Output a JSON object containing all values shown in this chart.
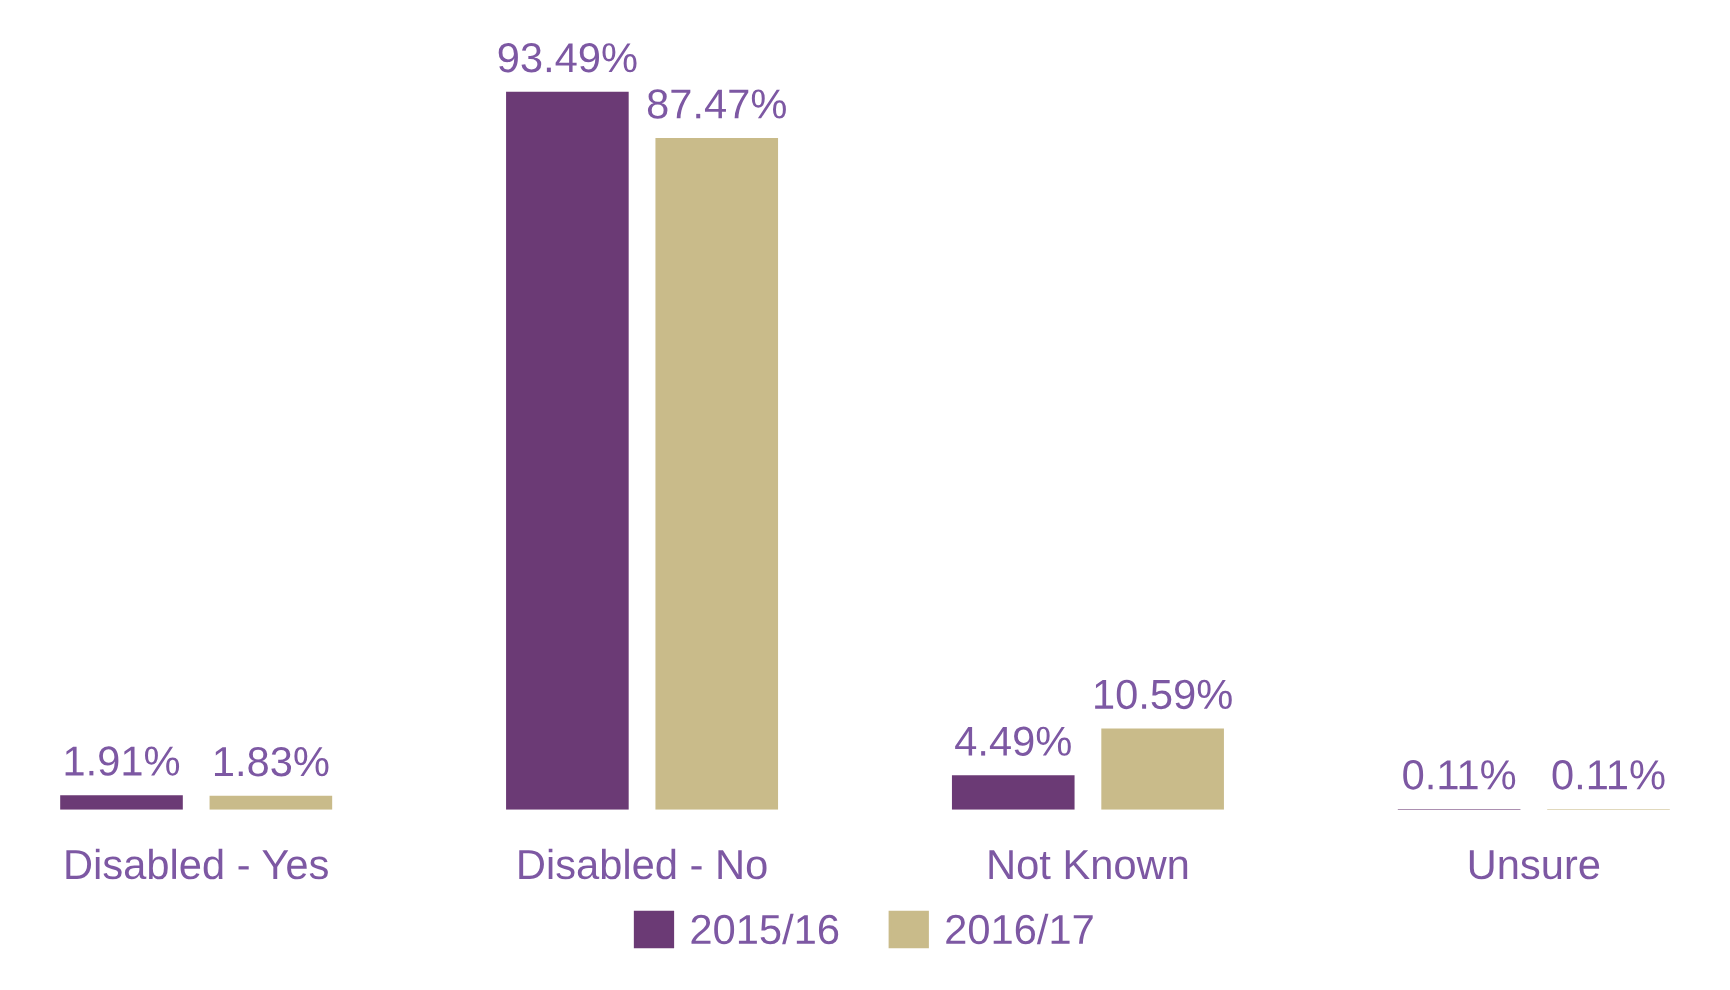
{
  "chart_data": {
    "type": "bar",
    "categories": [
      "Disabled - Yes",
      "Disabled - No",
      "Not Known",
      "Unsure"
    ],
    "series": [
      {
        "name": "2015/16",
        "color": "#6b3a75",
        "values": [
          1.91,
          93.49,
          4.49,
          0.11
        ],
        "value_labels": [
          "1.91%",
          "93.49%",
          "4.49%",
          "0.11%"
        ]
      },
      {
        "name": "2016/17",
        "color": "#c9bb8a",
        "values": [
          1.83,
          87.47,
          10.59,
          0.11
        ],
        "value_labels": [
          "1.83%",
          "87.47%",
          "10.59%",
          "0.11%"
        ]
      }
    ],
    "legend": "bottom",
    "grid": false,
    "tick_labels": "x"
  }
}
